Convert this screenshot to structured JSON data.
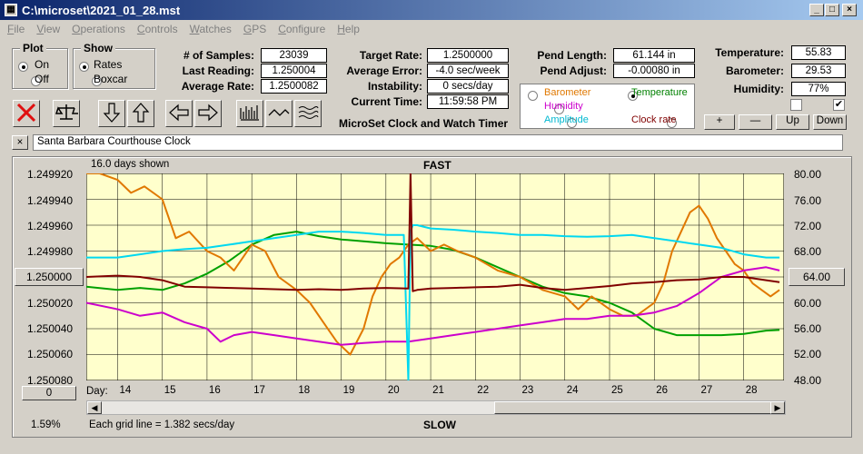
{
  "window": {
    "title": "C:\\microset\\2021_01_28.mst"
  },
  "menu": [
    "File",
    "View",
    "Operations",
    "Controls",
    "Watches",
    "GPS",
    "Configure",
    "Help"
  ],
  "plot_group": {
    "title": "Plot",
    "on": "On",
    "off": "Off",
    "selected": "On"
  },
  "show_group": {
    "title": "Show",
    "rates": "Rates",
    "boxcar": "Boxcar",
    "selected": "Rates"
  },
  "stats": {
    "samples_label": "# of Samples:",
    "samples": "23039",
    "last_label": "Last Reading:",
    "last": "1.250004",
    "avg_label": "Average Rate:",
    "avg": "1.2500082",
    "target_label": "Target Rate:",
    "target": "1.2500000",
    "avgerr_label": "Average Error:",
    "avgerr": "-4.0 sec/week",
    "instab_label": "Instability:",
    "instab": "0 secs/day",
    "time_label": "Current Time:",
    "time": "11:59:58 PM",
    "pendlen_label": "Pend Length:",
    "pendlen": "61.144 in",
    "pendadj_label": "Pend Adjust:",
    "pendadj": "-0.00080 in",
    "temp_label": "Temperature:",
    "temp": "55.83",
    "baro_label": "Barometer:",
    "baro": "29.53",
    "hum_label": "Humidity:",
    "hum": "77%"
  },
  "app_caption": "MicroSet Clock and Watch Timer",
  "sensor_options": {
    "barometer": "Barometer",
    "temperature": "Temperature",
    "humidity": "Humidity",
    "amplitude": "Amplitude",
    "clock_rate": "Clock rate",
    "selected": "Temperature",
    "colors": {
      "barometer": "#e07800",
      "temperature": "#008000",
      "humidity": "#cc00cc",
      "amplitude": "#00c8e0",
      "clock_rate": "#800000"
    }
  },
  "adjust_buttons": {
    "plus": "+",
    "minus": "—",
    "up": "Up",
    "down": "Down"
  },
  "toolbar_icons": [
    "stop-icon",
    "balance-icon",
    "arrow-down-icon",
    "arrow-up-icon",
    "arrow-left-icon",
    "arrow-right-icon",
    "bar-chart-icon",
    "wave-icon",
    "triple-wave-icon"
  ],
  "clock_name": "Santa Barbara Courthouse Clock",
  "chart_labels": {
    "days_shown": "16.0 days shown",
    "fast": "FAST",
    "slow": "SLOW",
    "grid_note": "Each grid line = 1.382 secs/day",
    "percent": "1.59%",
    "day_label": "Day:",
    "left_center_btn": "1.250000",
    "left_bottom_btn": "0",
    "right_center_btn": "64.00"
  },
  "chart_data": {
    "type": "line",
    "x_range": [
      13.3,
      28.9
    ],
    "x_ticks": [
      "14",
      "15",
      "16",
      "17",
      "18",
      "19",
      "20",
      "21",
      "22",
      "23",
      "24",
      "25",
      "26",
      "27",
      "28"
    ],
    "left_axis": {
      "ticks": [
        "1.249920",
        "1.249940",
        "1.249960",
        "1.249980",
        "1.250000",
        "1.250020",
        "1.250040",
        "1.250060",
        "1.250080"
      ],
      "range": [
        1.24992,
        1.25008
      ]
    },
    "right_axis": {
      "ticks": [
        "80.00",
        "76.00",
        "72.00",
        "68.00",
        "64.00",
        "60.00",
        "56.00",
        "52.00",
        "48.00"
      ],
      "range": [
        48,
        80
      ]
    },
    "grid": true,
    "series": [
      {
        "name": "Temperature",
        "color": "#00a000",
        "x": [
          13.3,
          14,
          14.5,
          15,
          15.5,
          16,
          16.5,
          16.8,
          17,
          17.5,
          18,
          18.5,
          19,
          19.5,
          20,
          20.5,
          21,
          21.5,
          22,
          22.5,
          23,
          23.5,
          24,
          24.5,
          25,
          25.5,
          26,
          26.5,
          27,
          27.5,
          28,
          28.5,
          28.8
        ],
        "y": [
          62.5,
          62,
          62.3,
          62,
          63,
          64.5,
          66.5,
          68,
          69,
          70.5,
          71,
          70.3,
          69.8,
          69.5,
          69.2,
          69,
          68.8,
          68.2,
          67,
          65.5,
          64,
          62.5,
          61.5,
          61,
          60,
          58.5,
          56,
          55,
          55,
          55,
          55.2,
          55.7,
          55.8
        ]
      },
      {
        "name": "Barometer",
        "color": "#e07800",
        "x": [
          13.3,
          13.6,
          14,
          14.3,
          14.6,
          15,
          15.3,
          15.6,
          16,
          16.3,
          16.6,
          17,
          17.3,
          17.6,
          18,
          18.3,
          18.6,
          18.9,
          19.2,
          19.5,
          19.7,
          19.9,
          20.1,
          20.3,
          20.5,
          20.7,
          21,
          21.3,
          21.6,
          22,
          22.5,
          23,
          23.5,
          24,
          24.3,
          24.6,
          25,
          25.3,
          25.6,
          26,
          26.2,
          26.4,
          26.6,
          26.8,
          27,
          27.2,
          27.4,
          27.6,
          27.8,
          28,
          28.2,
          28.4,
          28.6,
          28.8
        ],
        "y": [
          80,
          80,
          79,
          77,
          78,
          76,
          70,
          71,
          68,
          67,
          65,
          69,
          68,
          64,
          62,
          60,
          57,
          54,
          52,
          56,
          61,
          64,
          66,
          67,
          69,
          70,
          68,
          69,
          68,
          67,
          65,
          64,
          62,
          61,
          59,
          61,
          59,
          58,
          58,
          60,
          63,
          68,
          71,
          74,
          75,
          73,
          70,
          68,
          66,
          65,
          63,
          62,
          61,
          62
        ]
      },
      {
        "name": "Humidity",
        "color": "#cc00cc",
        "x": [
          13.3,
          14,
          14.5,
          15,
          15.5,
          16,
          16.3,
          16.6,
          17,
          17.5,
          18,
          18.5,
          19,
          19.5,
          20,
          20.5,
          21,
          21.5,
          22,
          22.5,
          23,
          23.5,
          24,
          24.5,
          25,
          25.5,
          26,
          26.5,
          27,
          27.5,
          28,
          28.5,
          28.8
        ],
        "y": [
          60,
          59,
          58,
          58.5,
          57,
          56,
          54,
          55,
          55.5,
          55,
          54.5,
          54,
          53.5,
          53.8,
          54,
          54,
          54.5,
          55,
          55.5,
          56,
          56.5,
          57,
          57.5,
          57.5,
          58,
          58,
          58.5,
          59.5,
          61.5,
          64,
          65,
          65.5,
          65
        ]
      },
      {
        "name": "Amplitude",
        "color": "#00d8f0",
        "x": [
          13.3,
          14,
          14.5,
          15,
          15.5,
          16,
          16.5,
          17,
          17.5,
          18,
          18.5,
          19,
          19.5,
          20,
          20.4,
          20.5,
          20.55,
          20.6,
          20.7,
          21,
          21.5,
          22,
          22.5,
          23,
          23.5,
          24,
          24.5,
          25,
          25.5,
          26,
          26.5,
          27,
          27.5,
          28,
          28.5,
          28.8
        ],
        "y": [
          67,
          67,
          67.5,
          68,
          68.3,
          68.5,
          69,
          69.5,
          70,
          70.5,
          71,
          71,
          70.8,
          70.5,
          70.5,
          48,
          71,
          72,
          72,
          71.5,
          71.3,
          71,
          70.8,
          70.5,
          70.5,
          70.3,
          70.2,
          70.3,
          70.5,
          70,
          69.5,
          69,
          68.5,
          67.5,
          67,
          67
        ]
      },
      {
        "name": "Clock rate",
        "color": "#800000",
        "x": [
          13.3,
          14,
          14.5,
          15,
          15.5,
          16,
          16.5,
          17,
          17.5,
          18,
          18.5,
          19,
          19.5,
          20,
          20.5,
          20.55,
          20.6,
          20.7,
          21,
          21.5,
          22,
          22.5,
          23,
          23.5,
          24,
          24.5,
          25,
          25.5,
          26,
          26.5,
          27,
          27.5,
          28,
          28.5,
          28.8
        ],
        "y": [
          64,
          64.2,
          64,
          63.5,
          62.5,
          62.4,
          62.3,
          62.2,
          62.1,
          62,
          62.1,
          62,
          62.2,
          62.3,
          62.2,
          80,
          61.8,
          62,
          62.2,
          62.3,
          62.4,
          62.5,
          62.8,
          62.3,
          62,
          62.3,
          62.6,
          63,
          63.2,
          63.5,
          63.6,
          64,
          64,
          63.5,
          63.2
        ]
      }
    ]
  }
}
